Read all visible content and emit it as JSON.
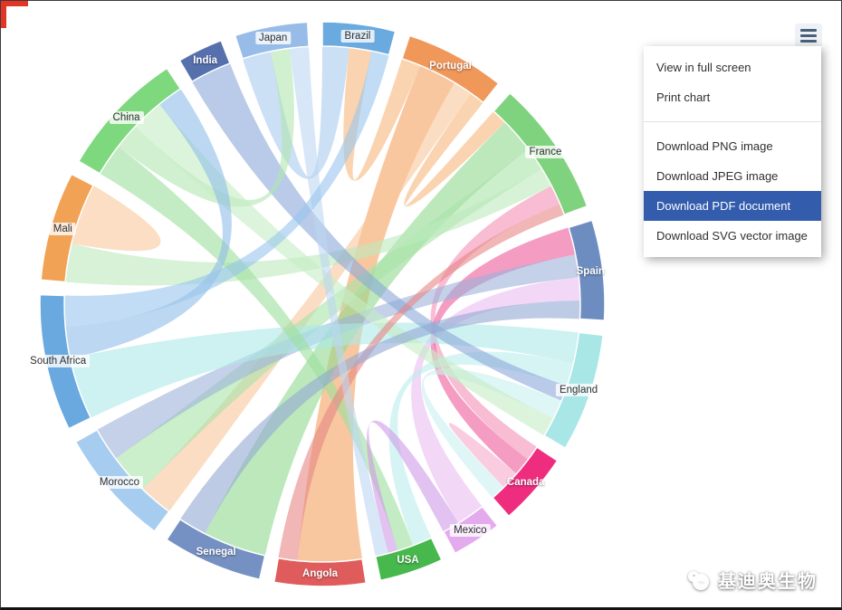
{
  "page": {
    "accent_color": "#e23526"
  },
  "menu": {
    "items": [
      {
        "label": "View in full screen",
        "highlighted": false
      },
      {
        "label": "Print chart",
        "highlighted": false
      },
      {
        "label": "Download PNG image",
        "highlighted": false
      },
      {
        "label": "Download JPEG image",
        "highlighted": false
      },
      {
        "label": "Download PDF document",
        "highlighted": true
      },
      {
        "label": "Download SVG vector image",
        "highlighted": false
      }
    ],
    "highlight_color": "#335cad",
    "highlight_text_color": "#ffffff"
  },
  "watermark": {
    "text": "基迪奥生物",
    "icon": "chick-logo"
  },
  "chart_data": {
    "type": "chord",
    "title": "",
    "legend": "none",
    "background": "#ffffff",
    "layout": {
      "start_angle_deg": 0,
      "gap_deg": 3,
      "direction": "clockwise"
    },
    "nodes": [
      {
        "name": "Brazil",
        "weight": 16,
        "color": "#6aaade",
        "label_style": "dark"
      },
      {
        "name": "Portugal",
        "weight": 22,
        "color": "#f0975a",
        "label_style": "light"
      },
      {
        "name": "France",
        "weight": 30,
        "color": "#7fd37f",
        "label_style": "dark"
      },
      {
        "name": "Spain",
        "weight": 22,
        "color": "#6d8dc0",
        "label_style": "light"
      },
      {
        "name": "England",
        "weight": 26,
        "color": "#a9e6e6",
        "label_style": "dark"
      },
      {
        "name": "Canada",
        "weight": 16,
        "color": "#ee2d7f",
        "label_style": "light"
      },
      {
        "name": "Mexico",
        "weight": 11,
        "color": "#e3aaee",
        "label_style": "dark"
      },
      {
        "name": "USA",
        "weight": 14,
        "color": "#46b84c",
        "label_style": "light"
      },
      {
        "name": "Angola",
        "weight": 20,
        "color": "#e05c5c",
        "label_style": "light"
      },
      {
        "name": "Senegal",
        "weight": 22,
        "color": "#7590c2",
        "label_style": "light"
      },
      {
        "name": "Morocco",
        "weight": 26,
        "color": "#a6cdf0",
        "label_style": "dark"
      },
      {
        "name": "South Africa",
        "weight": 30,
        "color": "#69a9e0",
        "label_style": "dark"
      },
      {
        "name": "Mali",
        "weight": 24,
        "color": "#f2a254",
        "label_style": "dark"
      },
      {
        "name": "China",
        "weight": 28,
        "color": "#7ed87e",
        "label_style": "dark"
      },
      {
        "name": "India",
        "weight": 10,
        "color": "#5570ad",
        "label_style": "light"
      },
      {
        "name": "Japan",
        "weight": 16,
        "color": "#97bce8",
        "label_style": "dark"
      }
    ],
    "links": [
      {
        "source": "Japan",
        "target": "Brazil",
        "weight": 6,
        "color": "#a9c9ee"
      },
      {
        "source": "Portugal",
        "target": "Brazil",
        "weight": 5,
        "color": "#f6b77d"
      },
      {
        "source": "Portugal",
        "target": "Angola",
        "weight": 10,
        "color": "#f3a15f"
      },
      {
        "source": "Portugal",
        "target": "Morocco",
        "weight": 5,
        "color": "#f8c79c"
      },
      {
        "source": "Portugal",
        "target": "France",
        "weight": 4,
        "color": "#f6b77d"
      },
      {
        "source": "France",
        "target": "Senegal",
        "weight": 9,
        "color": "#8fd88f"
      },
      {
        "source": "France",
        "target": "Morocco",
        "weight": 6,
        "color": "#a9e2a9"
      },
      {
        "source": "France",
        "target": "Mali",
        "weight": 5,
        "color": "#bdeabd"
      },
      {
        "source": "Canada",
        "target": "France",
        "weight": 5,
        "color": "#f48fb5"
      },
      {
        "source": "Canada",
        "target": "Spain",
        "weight": 6,
        "color": "#ee5a9b"
      },
      {
        "source": "Canada",
        "target": "Canada",
        "weight": 3,
        "color": "#f7aacb"
      },
      {
        "source": "Spain",
        "target": "Morocco",
        "weight": 5,
        "color": "#9db3da"
      },
      {
        "source": "Mexico",
        "target": "Spain",
        "weight": 5,
        "color": "#e9bdf2"
      },
      {
        "source": "England",
        "target": "South Africa",
        "weight": 8,
        "color": "#aee8e8"
      },
      {
        "source": "England",
        "target": "USA",
        "weight": 6,
        "color": "#bdeced"
      },
      {
        "source": "England",
        "target": "India",
        "weight": 4,
        "color": "#8aa9d8"
      },
      {
        "source": "England",
        "target": "Canada",
        "weight": 5,
        "color": "#c9f0f0"
      },
      {
        "source": "China",
        "target": "USA",
        "weight": 5,
        "color": "#9cdf9c"
      },
      {
        "source": "China",
        "target": "Japan",
        "weight": 4,
        "color": "#b0e6b0"
      },
      {
        "source": "China",
        "target": "England",
        "weight": 5,
        "color": "#c4ecc4"
      },
      {
        "source": "South Africa",
        "target": "China",
        "weight": 4,
        "color": "#8fbce8"
      },
      {
        "source": "Angola",
        "target": "France",
        "weight": 3,
        "color": "#e88585"
      },
      {
        "source": "Senegal",
        "target": "Spain",
        "weight": 4,
        "color": "#93a8d4"
      },
      {
        "source": "Mali",
        "target": "Mali",
        "weight": 4,
        "color": "#f8c89b"
      },
      {
        "source": "USA",
        "target": "Mexico",
        "weight": 3,
        "color": "#cf9ae6"
      },
      {
        "source": "Japan",
        "target": "USA",
        "weight": 4,
        "color": "#bcd7f2"
      },
      {
        "source": "South Africa",
        "target": "Brazil",
        "weight": 4,
        "color": "#97c5ec"
      }
    ]
  }
}
